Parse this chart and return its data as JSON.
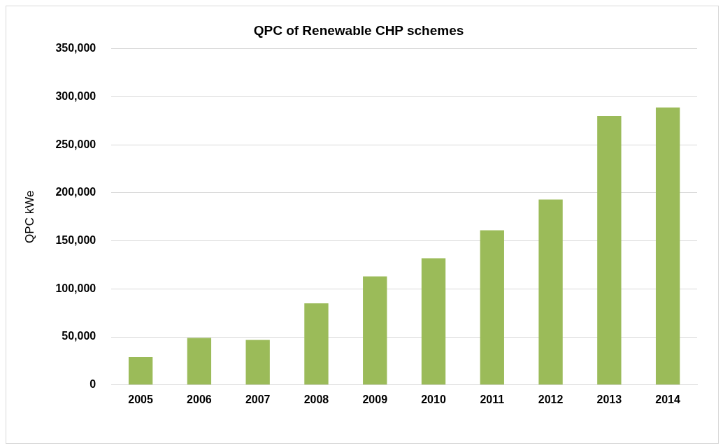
{
  "chart_data": {
    "type": "bar",
    "title": "QPC of Renewable CHP schemes",
    "ylabel": "QPC kWe",
    "categories": [
      "2005",
      "2006",
      "2007",
      "2008",
      "2009",
      "2010",
      "2011",
      "2012",
      "2013",
      "2014"
    ],
    "values": [
      29000,
      49000,
      47000,
      85000,
      113000,
      132000,
      161000,
      193000,
      280000,
      289000
    ],
    "color": "#9bbb59",
    "ylim": [
      0,
      350000
    ],
    "yticks": [
      0,
      {
        "value": 50000,
        "label": "50,000"
      },
      {
        "value": 100000,
        "label": "100,000"
      },
      {
        "value": 150000,
        "label": "150,000"
      },
      {
        "value": 200000,
        "label": "200,000"
      },
      {
        "value": 250000,
        "label": "250,000"
      },
      {
        "value": 300000,
        "label": "300,000"
      },
      {
        "value": 350000,
        "label": "350,000"
      }
    ],
    "grid": "y"
  }
}
